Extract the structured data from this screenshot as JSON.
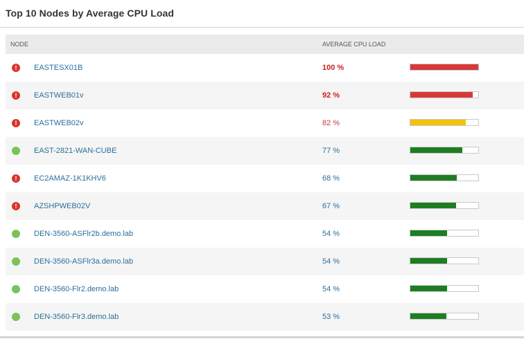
{
  "widget": {
    "title": "Top 10 Nodes by Average CPU Load"
  },
  "table": {
    "headers": {
      "node": "NODE",
      "cpu": "AVERAGE CPU LOAD"
    },
    "rows": [
      {
        "status": "critical",
        "status_icon": "alert-icon",
        "node": "EASTESX01B",
        "cpu_label": "100 %",
        "cpu_value": 100,
        "bar_color": "#d9383a",
        "text_style": "red-bold"
      },
      {
        "status": "critical",
        "status_icon": "alert-icon",
        "node": "EASTWEB01v",
        "cpu_label": "92 %",
        "cpu_value": 92,
        "bar_color": "#d9383a",
        "text_style": "red-bold"
      },
      {
        "status": "critical",
        "status_icon": "alert-icon",
        "node": "EASTWEB02v",
        "cpu_label": "82 %",
        "cpu_value": 82,
        "bar_color": "#f4c20d",
        "text_style": "red"
      },
      {
        "status": "up",
        "status_icon": "up-icon",
        "node": "EAST-2821-WAN-CUBE",
        "cpu_label": "77 %",
        "cpu_value": 77,
        "bar_color": "#1e7d22",
        "text_style": "normal"
      },
      {
        "status": "critical",
        "status_icon": "alert-icon",
        "node": "EC2AMAZ-1K1KHV6",
        "cpu_label": "68 %",
        "cpu_value": 68,
        "bar_color": "#1e7d22",
        "text_style": "normal"
      },
      {
        "status": "critical",
        "status_icon": "alert-icon",
        "node": "AZSHPWEB02V",
        "cpu_label": "67 %",
        "cpu_value": 67,
        "bar_color": "#1e7d22",
        "text_style": "normal"
      },
      {
        "status": "up",
        "status_icon": "up-icon",
        "node": "DEN-3560-ASFlr2b.demo.lab",
        "cpu_label": "54 %",
        "cpu_value": 54,
        "bar_color": "#1e7d22",
        "text_style": "normal"
      },
      {
        "status": "up",
        "status_icon": "up-icon",
        "node": "DEN-3560-ASFlr3a.demo.lab",
        "cpu_label": "54 %",
        "cpu_value": 54,
        "bar_color": "#1e7d22",
        "text_style": "normal"
      },
      {
        "status": "up",
        "status_icon": "up-icon",
        "node": "DEN-3560-Flr2.demo.lab",
        "cpu_label": "54 %",
        "cpu_value": 54,
        "bar_color": "#1e7d22",
        "text_style": "normal"
      },
      {
        "status": "up",
        "status_icon": "up-icon",
        "node": "DEN-3560-Flr3.demo.lab",
        "cpu_label": "53 %",
        "cpu_value": 53,
        "bar_color": "#1e7d22",
        "text_style": "normal"
      }
    ]
  }
}
